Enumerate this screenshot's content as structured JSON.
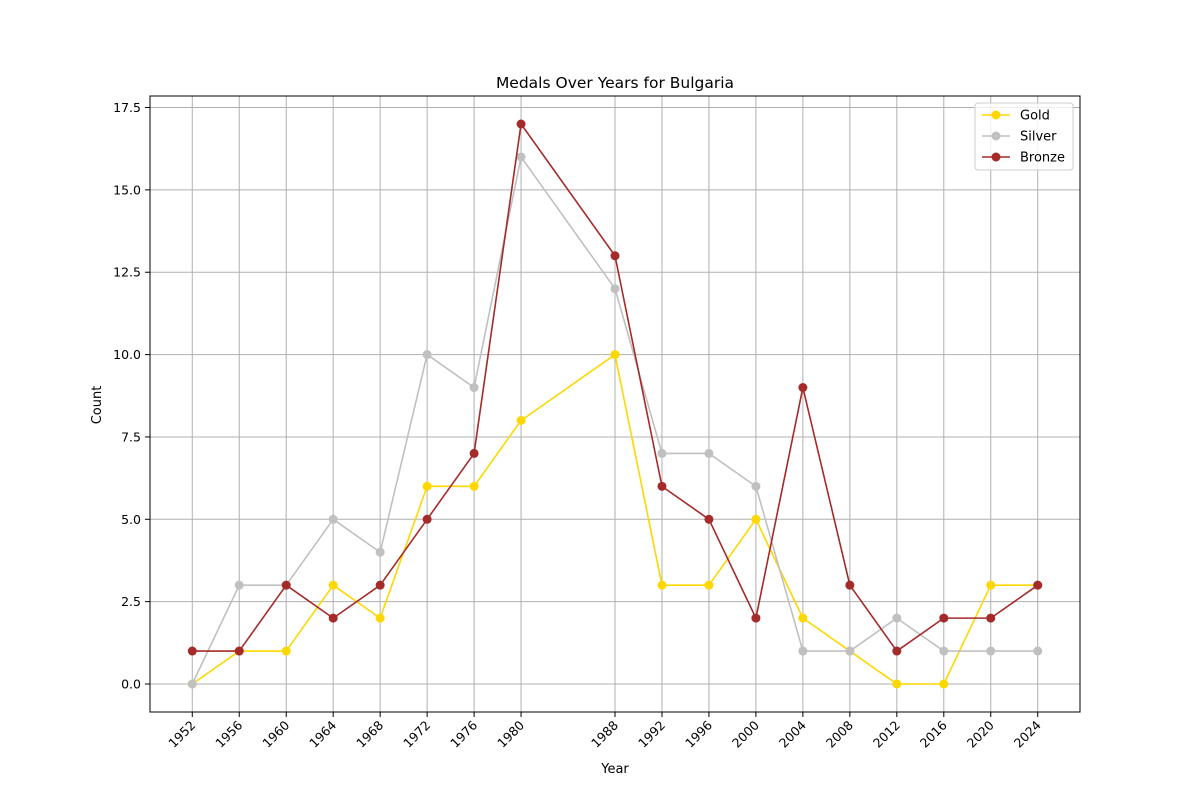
{
  "chart_data": {
    "type": "line",
    "title": "Medals Over Years for Bulgaria",
    "xlabel": "Year",
    "ylabel": "Count",
    "x": [
      1952,
      1956,
      1960,
      1964,
      1968,
      1972,
      1976,
      1980,
      1988,
      1992,
      1996,
      2000,
      2004,
      2008,
      2012,
      2016,
      2020,
      2024
    ],
    "xlim": [
      1948.4,
      2027.6
    ],
    "ylim": [
      -0.85,
      17.85
    ],
    "yticks": [
      0.0,
      2.5,
      5.0,
      7.5,
      10.0,
      12.5,
      15.0,
      17.5
    ],
    "ytick_labels": [
      "0.0",
      "2.5",
      "5.0",
      "7.5",
      "10.0",
      "12.5",
      "15.0",
      "17.5"
    ],
    "xtick_labels": [
      "1952",
      "1956",
      "1960",
      "1964",
      "1968",
      "1972",
      "1976",
      "1980",
      "1988",
      "1992",
      "1996",
      "2000",
      "2004",
      "2008",
      "2012",
      "2016",
      "2020",
      "2024"
    ],
    "grid": true,
    "legend_position": "top-right",
    "series": [
      {
        "name": "Gold",
        "color": "#FFD700",
        "values": [
          0,
          1,
          1,
          3,
          2,
          6,
          6,
          8,
          10,
          3,
          3,
          5,
          2,
          1,
          0,
          0,
          3,
          3
        ]
      },
      {
        "name": "Silver",
        "color": "#C0C0C0",
        "values": [
          0,
          3,
          3,
          5,
          4,
          10,
          9,
          16,
          12,
          7,
          7,
          6,
          1,
          1,
          2,
          1,
          1,
          1
        ]
      },
      {
        "name": "Bronze",
        "color": "#A52A2A",
        "values": [
          1,
          1,
          3,
          2,
          3,
          5,
          7,
          17,
          13,
          6,
          5,
          2,
          9,
          3,
          1,
          2,
          2,
          3
        ]
      }
    ]
  }
}
